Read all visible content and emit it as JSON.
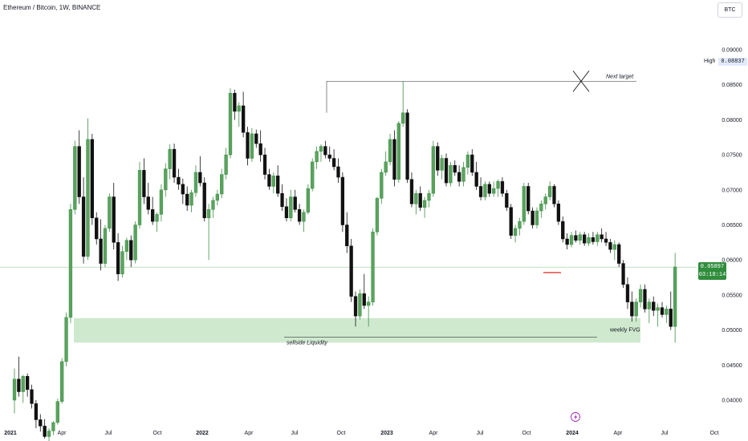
{
  "header": {
    "title": "Ethereum / Bitcoin, 1W, BINANCE",
    "currency_button": "BTC"
  },
  "price_badge": {
    "value": "0.05897",
    "countdown": "03:18:14"
  },
  "high_label": {
    "label": "High",
    "value": "0.08837"
  },
  "annotations": {
    "next_target": "Next target",
    "weekly_fvg": "weekly FVG",
    "sellside": "sellside Liquidity"
  },
  "colors": {
    "bull": "#3e8f45",
    "bear": "#111111",
    "fvg_fill": "#cfe9cf",
    "price_line": "#4caf50",
    "red_level": "#e53935",
    "event_icon": "#9c27b0"
  },
  "chart_data": {
    "type": "candlestick",
    "title": "Ethereum / Bitcoin, 1W, BINANCE",
    "y_axis": {
      "ticks": [
        "0.09000",
        "0.08500",
        "0.08000",
        "0.07500",
        "0.07000",
        "0.06500",
        "0.06000",
        "0.05500",
        "0.05000",
        "0.04500",
        "0.04000"
      ],
      "ylim": [
        0.0385,
        0.0935
      ]
    },
    "x_axis": {
      "labels": [
        "2021",
        "Apr",
        "Jul",
        "Oct",
        "2022",
        "Apr",
        "Jul",
        "Oct",
        "2023",
        "Apr",
        "Jul",
        "Oct",
        "2024",
        "Apr",
        "Jul",
        "Oct"
      ]
    },
    "levels": {
      "next_target": 0.0855,
      "fvg_low": 0.0482,
      "fvg_high": 0.0517,
      "sellside_liquidity": 0.049,
      "current_price": 0.05897,
      "high": 0.08837,
      "red_level": 0.0582
    },
    "ohlc": [
      [
        0.04,
        0.0445,
        0.0381,
        0.043
      ],
      [
        0.043,
        0.0462,
        0.0405,
        0.0412
      ],
      [
        0.0412,
        0.0436,
        0.0396,
        0.0434
      ],
      [
        0.0434,
        0.0438,
        0.0405,
        0.0415
      ],
      [
        0.0415,
        0.0422,
        0.0388,
        0.0395
      ],
      [
        0.0395,
        0.04,
        0.036,
        0.0372
      ],
      [
        0.0372,
        0.038,
        0.0355,
        0.0363
      ],
      [
        0.0363,
        0.0373,
        0.0345,
        0.0348
      ],
      [
        0.0348,
        0.036,
        0.034,
        0.0356
      ],
      [
        0.0356,
        0.037,
        0.035,
        0.0368
      ],
      [
        0.0368,
        0.0402,
        0.0365,
        0.0398
      ],
      [
        0.0398,
        0.046,
        0.0395,
        0.0455
      ],
      [
        0.0455,
        0.0525,
        0.0448,
        0.0518
      ],
      [
        0.0518,
        0.068,
        0.051,
        0.0672
      ],
      [
        0.0672,
        0.077,
        0.0665,
        0.0762
      ],
      [
        0.0762,
        0.0785,
        0.068,
        0.069
      ],
      [
        0.069,
        0.0718,
        0.0595,
        0.0605
      ],
      [
        0.0605,
        0.0802,
        0.06,
        0.0772
      ],
      [
        0.0772,
        0.078,
        0.065,
        0.066
      ],
      [
        0.066,
        0.0668,
        0.0622,
        0.063
      ],
      [
        0.063,
        0.0658,
        0.0585,
        0.0595
      ],
      [
        0.0595,
        0.065,
        0.059,
        0.0645
      ],
      [
        0.0645,
        0.0695,
        0.064,
        0.069
      ],
      [
        0.069,
        0.071,
        0.0615,
        0.0625
      ],
      [
        0.0625,
        0.0638,
        0.057,
        0.058
      ],
      [
        0.058,
        0.062,
        0.0575,
        0.0612
      ],
      [
        0.0612,
        0.0632,
        0.06,
        0.0628
      ],
      [
        0.0628,
        0.0635,
        0.059,
        0.06
      ],
      [
        0.06,
        0.0655,
        0.0595,
        0.065
      ],
      [
        0.065,
        0.074,
        0.0645,
        0.0728
      ],
      [
        0.0728,
        0.0745,
        0.068,
        0.069
      ],
      [
        0.069,
        0.071,
        0.0665,
        0.0672
      ],
      [
        0.0672,
        0.069,
        0.065,
        0.0655
      ],
      [
        0.0655,
        0.0668,
        0.064,
        0.0665
      ],
      [
        0.0665,
        0.0708,
        0.0655,
        0.07
      ],
      [
        0.07,
        0.0738,
        0.069,
        0.073
      ],
      [
        0.073,
        0.0765,
        0.0715,
        0.0758
      ],
      [
        0.0758,
        0.0766,
        0.071,
        0.0718
      ],
      [
        0.0718,
        0.073,
        0.07,
        0.0708
      ],
      [
        0.0708,
        0.0716,
        0.068,
        0.0694
      ],
      [
        0.0694,
        0.0705,
        0.067,
        0.0678
      ],
      [
        0.0678,
        0.07,
        0.0668,
        0.0696
      ],
      [
        0.0696,
        0.0735,
        0.069,
        0.0725
      ],
      [
        0.0725,
        0.0748,
        0.0705,
        0.071
      ],
      [
        0.071,
        0.0718,
        0.0655,
        0.066
      ],
      [
        0.066,
        0.068,
        0.06,
        0.0672
      ],
      [
        0.0672,
        0.069,
        0.066,
        0.0685
      ],
      [
        0.0685,
        0.07,
        0.0678,
        0.0694
      ],
      [
        0.0694,
        0.073,
        0.0688,
        0.0722
      ],
      [
        0.0722,
        0.076,
        0.0715,
        0.075
      ],
      [
        0.075,
        0.0845,
        0.0745,
        0.0838
      ],
      [
        0.0838,
        0.0843,
        0.08,
        0.0812
      ],
      [
        0.0812,
        0.0825,
        0.079,
        0.082
      ],
      [
        0.082,
        0.084,
        0.0775,
        0.0782
      ],
      [
        0.0782,
        0.079,
        0.0735,
        0.0745
      ],
      [
        0.0745,
        0.0788,
        0.074,
        0.078
      ],
      [
        0.078,
        0.0786,
        0.076,
        0.0766
      ],
      [
        0.0766,
        0.0785,
        0.074,
        0.075
      ],
      [
        0.075,
        0.076,
        0.0715,
        0.0722
      ],
      [
        0.0722,
        0.073,
        0.07,
        0.0705
      ],
      [
        0.0705,
        0.0725,
        0.0695,
        0.072
      ],
      [
        0.072,
        0.0735,
        0.069,
        0.0695
      ],
      [
        0.0695,
        0.0708,
        0.067,
        0.0676
      ],
      [
        0.0676,
        0.0688,
        0.0655,
        0.066
      ],
      [
        0.066,
        0.07,
        0.0655,
        0.069
      ],
      [
        0.069,
        0.07,
        0.0668,
        0.0672
      ],
      [
        0.0672,
        0.068,
        0.065,
        0.0655
      ],
      [
        0.0655,
        0.0672,
        0.064,
        0.0668
      ],
      [
        0.0668,
        0.0708,
        0.0665,
        0.0702
      ],
      [
        0.0702,
        0.0745,
        0.0698,
        0.074
      ],
      [
        0.074,
        0.0762,
        0.073,
        0.0755
      ],
      [
        0.0755,
        0.0765,
        0.074,
        0.0762
      ],
      [
        0.0762,
        0.077,
        0.0745,
        0.075
      ],
      [
        0.075,
        0.0762,
        0.074,
        0.0745
      ],
      [
        0.0745,
        0.0758,
        0.0728,
        0.0733
      ],
      [
        0.0733,
        0.0745,
        0.071,
        0.0718
      ],
      [
        0.0718,
        0.0725,
        0.064,
        0.065
      ],
      [
        0.065,
        0.0668,
        0.061,
        0.062
      ],
      [
        0.062,
        0.063,
        0.054,
        0.0548
      ],
      [
        0.0548,
        0.0555,
        0.0505,
        0.052
      ],
      [
        0.052,
        0.0558,
        0.0515,
        0.0552
      ],
      [
        0.0552,
        0.058,
        0.053,
        0.0535
      ],
      [
        0.0535,
        0.0548,
        0.0505,
        0.054
      ],
      [
        0.054,
        0.0645,
        0.0535,
        0.064
      ],
      [
        0.064,
        0.069,
        0.0635,
        0.0688
      ],
      [
        0.0688,
        0.073,
        0.068,
        0.0725
      ],
      [
        0.0725,
        0.0755,
        0.072,
        0.074
      ],
      [
        0.074,
        0.078,
        0.0735,
        0.0772
      ],
      [
        0.0772,
        0.0785,
        0.0705,
        0.0715
      ],
      [
        0.0715,
        0.0798,
        0.071,
        0.0795
      ],
      [
        0.0795,
        0.0855,
        0.079,
        0.081
      ],
      [
        0.081,
        0.0815,
        0.071,
        0.0715
      ],
      [
        0.0715,
        0.0725,
        0.0675,
        0.068
      ],
      [
        0.068,
        0.07,
        0.0665,
        0.0695
      ],
      [
        0.0695,
        0.0705,
        0.067,
        0.0675
      ],
      [
        0.0675,
        0.069,
        0.066,
        0.0685
      ],
      [
        0.0685,
        0.07,
        0.0675,
        0.0695
      ],
      [
        0.0695,
        0.077,
        0.069,
        0.0762
      ],
      [
        0.0762,
        0.0768,
        0.072,
        0.0728
      ],
      [
        0.0728,
        0.075,
        0.0715,
        0.0745
      ],
      [
        0.0745,
        0.0752,
        0.0705,
        0.071
      ],
      [
        0.071,
        0.074,
        0.0705,
        0.0735
      ],
      [
        0.0735,
        0.0742,
        0.072,
        0.0725
      ],
      [
        0.0725,
        0.0735,
        0.0705,
        0.0712
      ],
      [
        0.0712,
        0.074,
        0.0705,
        0.0732
      ],
      [
        0.0732,
        0.0755,
        0.0722,
        0.075
      ],
      [
        0.075,
        0.0758,
        0.072,
        0.0725
      ],
      [
        0.0725,
        0.074,
        0.07,
        0.0705
      ],
      [
        0.0705,
        0.0718,
        0.0685,
        0.069
      ],
      [
        0.069,
        0.0712,
        0.0685,
        0.0708
      ],
      [
        0.0708,
        0.0712,
        0.069,
        0.0695
      ],
      [
        0.0695,
        0.0712,
        0.069,
        0.0702
      ],
      [
        0.0702,
        0.0715,
        0.069,
        0.0712
      ],
      [
        0.0712,
        0.0718,
        0.069,
        0.0695
      ],
      [
        0.0695,
        0.07,
        0.067,
        0.0675
      ],
      [
        0.0675,
        0.068,
        0.063,
        0.0635
      ],
      [
        0.0635,
        0.065,
        0.0625,
        0.0645
      ],
      [
        0.0645,
        0.066,
        0.0635,
        0.0655
      ],
      [
        0.0655,
        0.071,
        0.065,
        0.0705
      ],
      [
        0.0705,
        0.071,
        0.0665,
        0.067
      ],
      [
        0.067,
        0.0675,
        0.0645,
        0.065
      ],
      [
        0.065,
        0.0675,
        0.0645,
        0.067
      ],
      [
        0.067,
        0.0685,
        0.066,
        0.068
      ],
      [
        0.068,
        0.0695,
        0.0672,
        0.069
      ],
      [
        0.069,
        0.0712,
        0.0685,
        0.0705
      ],
      [
        0.0705,
        0.0708,
        0.0675,
        0.068
      ],
      [
        0.068,
        0.0685,
        0.065,
        0.0655
      ],
      [
        0.0655,
        0.0662,
        0.0625,
        0.063
      ],
      [
        0.063,
        0.0638,
        0.0615,
        0.0622
      ],
      [
        0.0622,
        0.064,
        0.0618,
        0.0635
      ],
      [
        0.0635,
        0.0642,
        0.0625,
        0.0628
      ],
      [
        0.0628,
        0.064,
        0.0622,
        0.0636
      ],
      [
        0.0636,
        0.064,
        0.062,
        0.0624
      ],
      [
        0.0624,
        0.0638,
        0.062,
        0.0632
      ],
      [
        0.0632,
        0.064,
        0.0622,
        0.0626
      ],
      [
        0.0626,
        0.064,
        0.062,
        0.0636
      ],
      [
        0.0636,
        0.0645,
        0.0625,
        0.063
      ],
      [
        0.063,
        0.064,
        0.062,
        0.0625
      ],
      [
        0.0625,
        0.063,
        0.061,
        0.0615
      ],
      [
        0.0615,
        0.0628,
        0.06,
        0.0622
      ],
      [
        0.0622,
        0.0625,
        0.059,
        0.0595
      ],
      [
        0.0595,
        0.06,
        0.056,
        0.0565
      ],
      [
        0.0565,
        0.0575,
        0.053,
        0.054
      ],
      [
        0.054,
        0.0555,
        0.0512,
        0.052
      ],
      [
        0.052,
        0.0545,
        0.0512,
        0.054
      ],
      [
        0.054,
        0.0565,
        0.0532,
        0.0558
      ],
      [
        0.0558,
        0.0565,
        0.0525,
        0.053
      ],
      [
        0.053,
        0.0545,
        0.051,
        0.054
      ],
      [
        0.054,
        0.0548,
        0.052,
        0.0528
      ],
      [
        0.0528,
        0.0538,
        0.0505,
        0.0532
      ],
      [
        0.0532,
        0.054,
        0.0518,
        0.0522
      ],
      [
        0.0522,
        0.0535,
        0.051,
        0.053
      ],
      [
        0.053,
        0.0555,
        0.05,
        0.0505
      ],
      [
        0.0505,
        0.061,
        0.0482,
        0.059
      ]
    ]
  }
}
